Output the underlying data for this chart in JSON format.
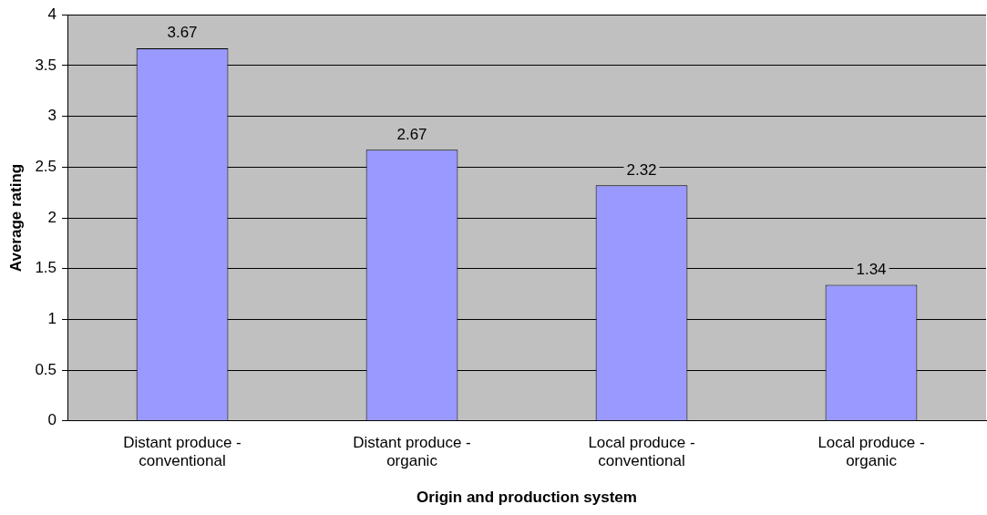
{
  "chart_data": {
    "type": "bar",
    "xlabel": "Origin and production system",
    "ylabel": "Average rating",
    "categories": [
      "Distant produce - conventional",
      "Distant produce - organic",
      "Local produce - conventional",
      "Local produce - organic"
    ],
    "values": [
      3.67,
      2.67,
      2.32,
      1.34
    ],
    "color": "#9999ff",
    "ylim": [
      0,
      4
    ],
    "yticks": [
      0,
      0.5,
      1,
      1.5,
      2,
      2.5,
      3,
      3.5,
      4
    ],
    "grid": "y",
    "data_labels": true,
    "legend": false
  }
}
